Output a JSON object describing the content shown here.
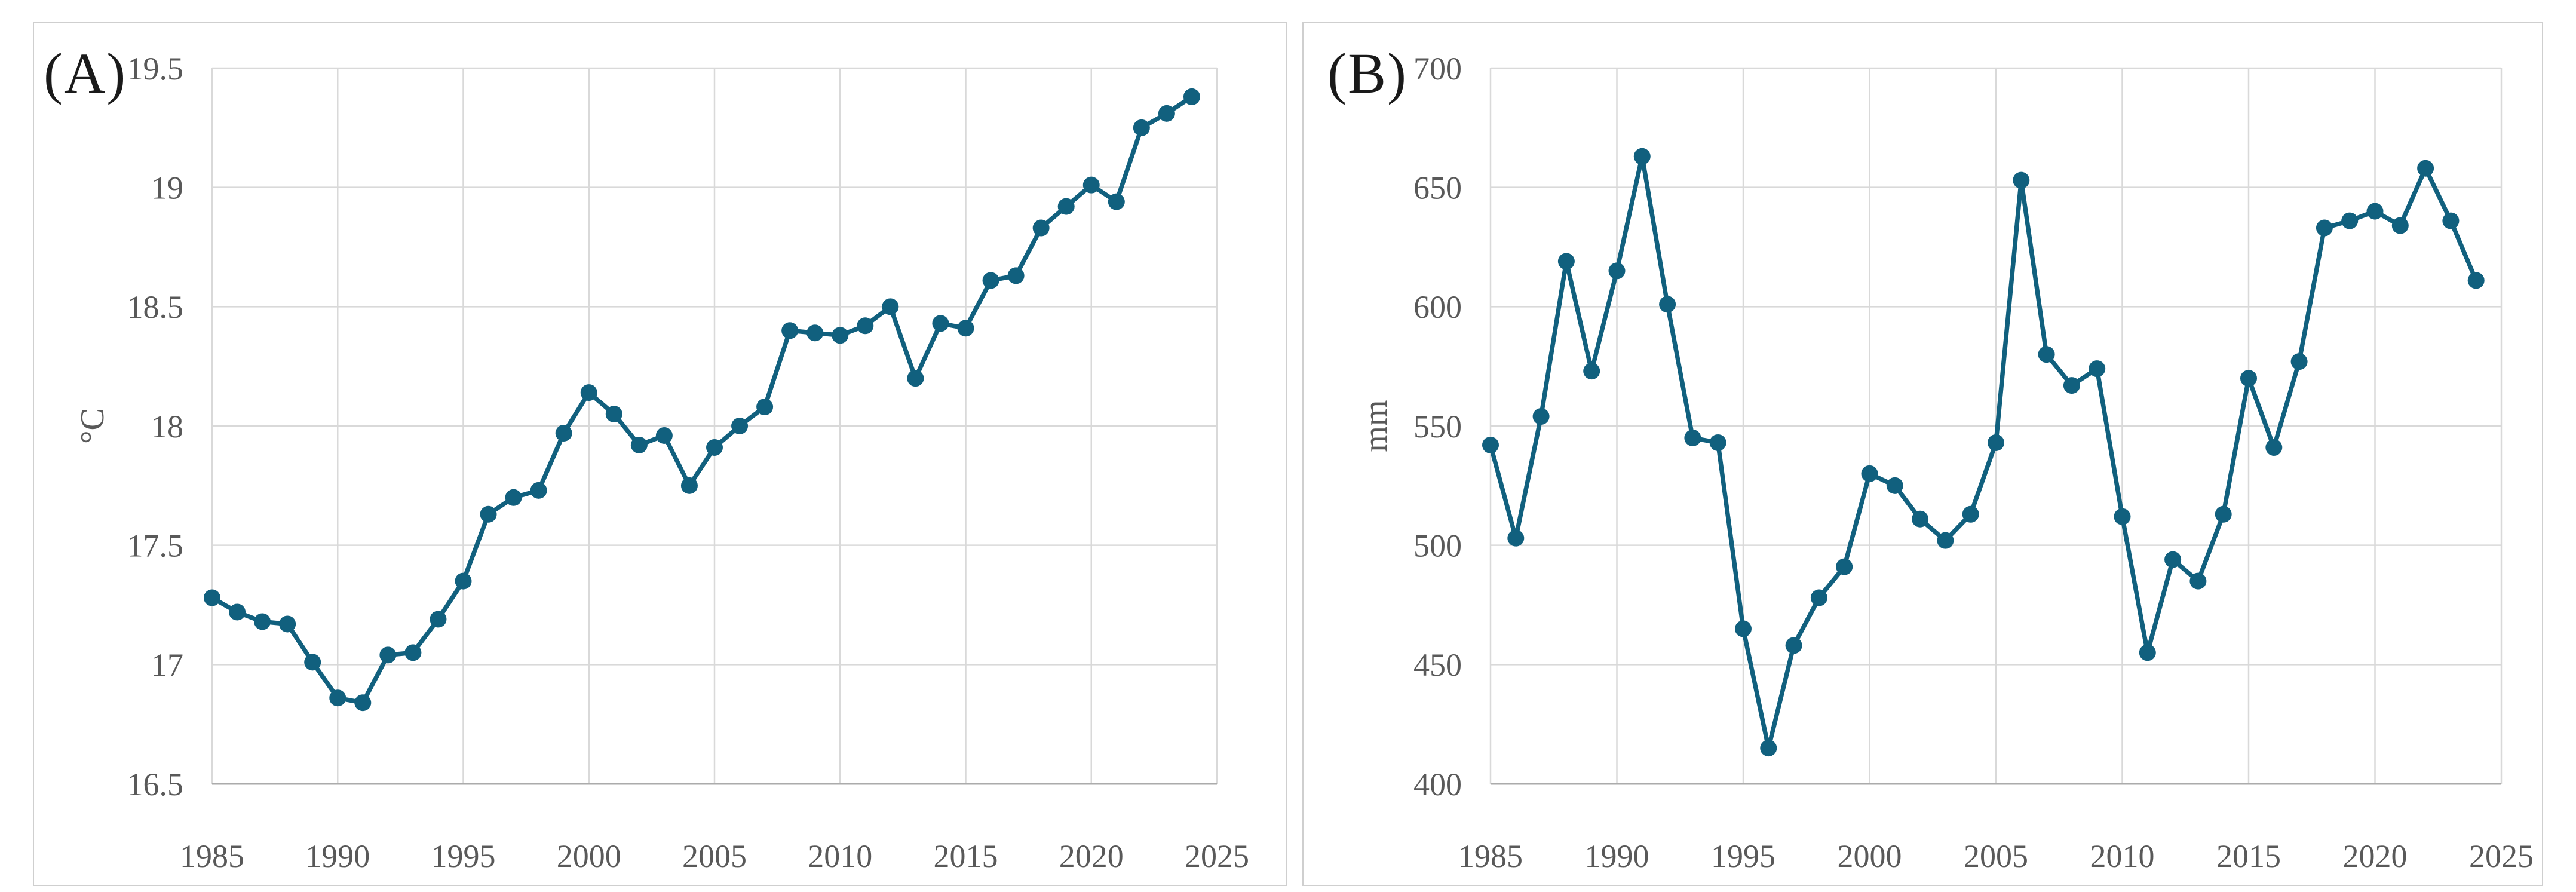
{
  "figure": {
    "background": "#ffffff",
    "panel_border_color": "#cfcfcf",
    "grid_color": "#d9d9d9",
    "axis_line_color": "#ababab",
    "tick_label_color": "#595959",
    "panel_label_color": "#1a1a1a",
    "series_color": "#11607e"
  },
  "chart_data": [
    {
      "type": "line",
      "panel_label": "(A)",
      "title": "",
      "xlabel": "",
      "ylabel": "°C",
      "legend_position": "none",
      "grid": true,
      "marker": "circle",
      "line_color": "#11607e",
      "xlim": [
        1985,
        2025
      ],
      "ylim": [
        16.5,
        19.5
      ],
      "xtick_values": [
        1985,
        1990,
        1995,
        2000,
        2005,
        2010,
        2015,
        2020,
        2025
      ],
      "xtick_labels": [
        "1985",
        "1990",
        "1995",
        "2000",
        "2005",
        "2010",
        "2015",
        "2020",
        "2025"
      ],
      "ytick_values": [
        19.5,
        19,
        18.5,
        18,
        17.5,
        17,
        16.5
      ],
      "ytick_labels": [
        "19.5",
        "19",
        "18.5",
        "18",
        "17.5",
        "17",
        "16.5"
      ],
      "x": [
        1985,
        1986,
        1987,
        1988,
        1989,
        1990,
        1991,
        1992,
        1993,
        1994,
        1995,
        1996,
        1997,
        1998,
        1999,
        2000,
        2001,
        2002,
        2003,
        2004,
        2005,
        2006,
        2007,
        2008,
        2009,
        2010,
        2011,
        2012,
        2013,
        2014,
        2015,
        2016,
        2017,
        2018,
        2019,
        2020,
        2021,
        2022,
        2023,
        2024
      ],
      "values": [
        17.28,
        17.22,
        17.18,
        17.17,
        17.01,
        16.86,
        16.84,
        17.04,
        17.05,
        17.19,
        17.35,
        17.63,
        17.7,
        17.73,
        17.97,
        18.14,
        18.05,
        17.92,
        17.96,
        17.75,
        17.91,
        18.0,
        18.08,
        18.4,
        18.39,
        18.38,
        18.42,
        18.5,
        18.2,
        18.43,
        18.41,
        18.61,
        18.63,
        18.83,
        18.92,
        19.01,
        18.94,
        19.25,
        19.31,
        19.38
      ]
    },
    {
      "type": "line",
      "panel_label": "(B)",
      "title": "",
      "xlabel": "",
      "ylabel": "mm",
      "legend_position": "none",
      "grid": true,
      "marker": "circle",
      "line_color": "#11607e",
      "xlim": [
        1985,
        2025
      ],
      "ylim": [
        400,
        700
      ],
      "xtick_values": [
        1985,
        1990,
        1995,
        2000,
        2005,
        2010,
        2015,
        2020,
        2025
      ],
      "xtick_labels": [
        "1985",
        "1990",
        "1995",
        "2000",
        "2005",
        "2010",
        "2015",
        "2020",
        "2025"
      ],
      "ytick_values": [
        700,
        650,
        600,
        550,
        500,
        450,
        400
      ],
      "ytick_labels": [
        "700",
        "650",
        "600",
        "550",
        "500",
        "450",
        "400"
      ],
      "x": [
        1985,
        1986,
        1987,
        1988,
        1989,
        1990,
        1991,
        1992,
        1993,
        1994,
        1995,
        1996,
        1997,
        1998,
        1999,
        2000,
        2001,
        2002,
        2003,
        2004,
        2005,
        2006,
        2007,
        2008,
        2009,
        2010,
        2011,
        2012,
        2013,
        2014,
        2015,
        2016,
        2017,
        2018,
        2019,
        2020,
        2021,
        2022,
        2023,
        2024
      ],
      "values": [
        542,
        503,
        554,
        619,
        573,
        615,
        663,
        601,
        545,
        543,
        465,
        415,
        458,
        478,
        491,
        530,
        525,
        511,
        502,
        513,
        543,
        653,
        580,
        567,
        574,
        512,
        455,
        494,
        485,
        513,
        570,
        541,
        577,
        633,
        636,
        640,
        634,
        658,
        636,
        611
      ]
    }
  ]
}
